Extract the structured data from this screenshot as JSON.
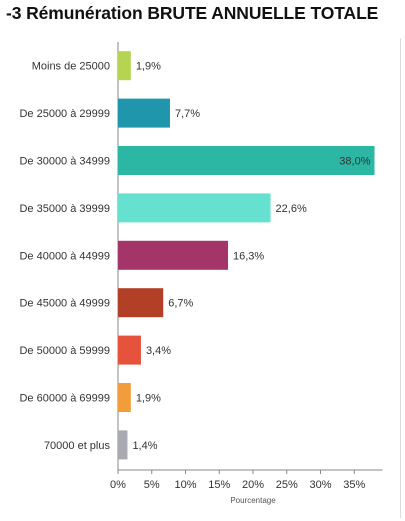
{
  "chart_data": {
    "type": "bar",
    "orientation": "horizontal",
    "title": "-3 Rémunération BRUTE ANNUELLE TOTALE",
    "xlabel": "Pourcentage",
    "ylabel": "",
    "xlim": [
      0,
      38
    ],
    "x_ticks": [
      0,
      5,
      10,
      15,
      20,
      25,
      30,
      35
    ],
    "x_tick_labels": [
      "0%",
      "5%",
      "10%",
      "15%",
      "20%",
      "25%",
      "30%",
      "35%"
    ],
    "grid": false,
    "legend": "none",
    "categories": [
      "Moins de 25000",
      "De 25000 à 29999",
      "De 30000 à 34999",
      "De 35000 à 39999",
      "De 40000 à 44999",
      "De 45000 à 49999",
      "De 50000 à 59999",
      "De 60000 à 69999",
      "70000 et plus"
    ],
    "values": [
      1.9,
      7.7,
      38.0,
      22.6,
      16.3,
      6.7,
      3.4,
      1.9,
      1.4
    ],
    "value_labels": [
      "1,9%",
      "7,7%",
      "38,0%",
      "22,6%",
      "16,3%",
      "6,7%",
      "3,4%",
      "1,9%",
      "1,4%"
    ],
    "colors": [
      "#b4d452",
      "#2096ac",
      "#2bb7a3",
      "#66e1d0",
      "#a33568",
      "#b24026",
      "#e5533c",
      "#f39c3c",
      "#a9a9b1"
    ]
  }
}
